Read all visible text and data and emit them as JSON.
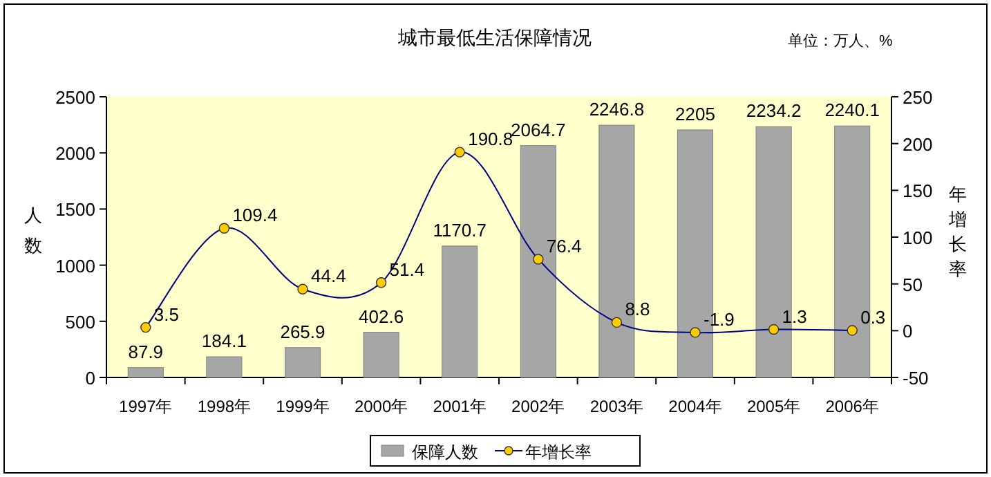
{
  "chart_data": {
    "type": "bar",
    "title": "城市最低生活保障情况",
    "annotations": [
      "单位：万人、%"
    ],
    "ylabel": "人数",
    "y2label": "年增长率",
    "categories": [
      "1997年",
      "1998年",
      "1999年",
      "2000年",
      "2001年",
      "2002年",
      "2003年",
      "2004年",
      "2005年",
      "2006年"
    ],
    "series": [
      {
        "name": "保障人数",
        "color": "#a6a6a6",
        "values": [
          87.9,
          184.1,
          265.9,
          402.6,
          1170.7,
          2064.7,
          2246.8,
          2205,
          2234.2,
          2240.1
        ]
      },
      {
        "name": "年增长率",
        "type": "line",
        "axis": "y2",
        "color": "#000080",
        "marker": "circle",
        "values": [
          3.5,
          109.4,
          44.4,
          51.4,
          190.8,
          76.4,
          8.8,
          -1.9,
          1.3,
          0.3
        ]
      }
    ],
    "ylim": [
      0,
      2500
    ],
    "yticks": [
      0,
      500,
      1000,
      1500,
      2000,
      2500
    ],
    "y2lim": [
      -50,
      250
    ],
    "y2ticks": [
      -50,
      0,
      50,
      100,
      150,
      200,
      250
    ],
    "data_labels": true,
    "legend": "bottom",
    "grid": false
  }
}
